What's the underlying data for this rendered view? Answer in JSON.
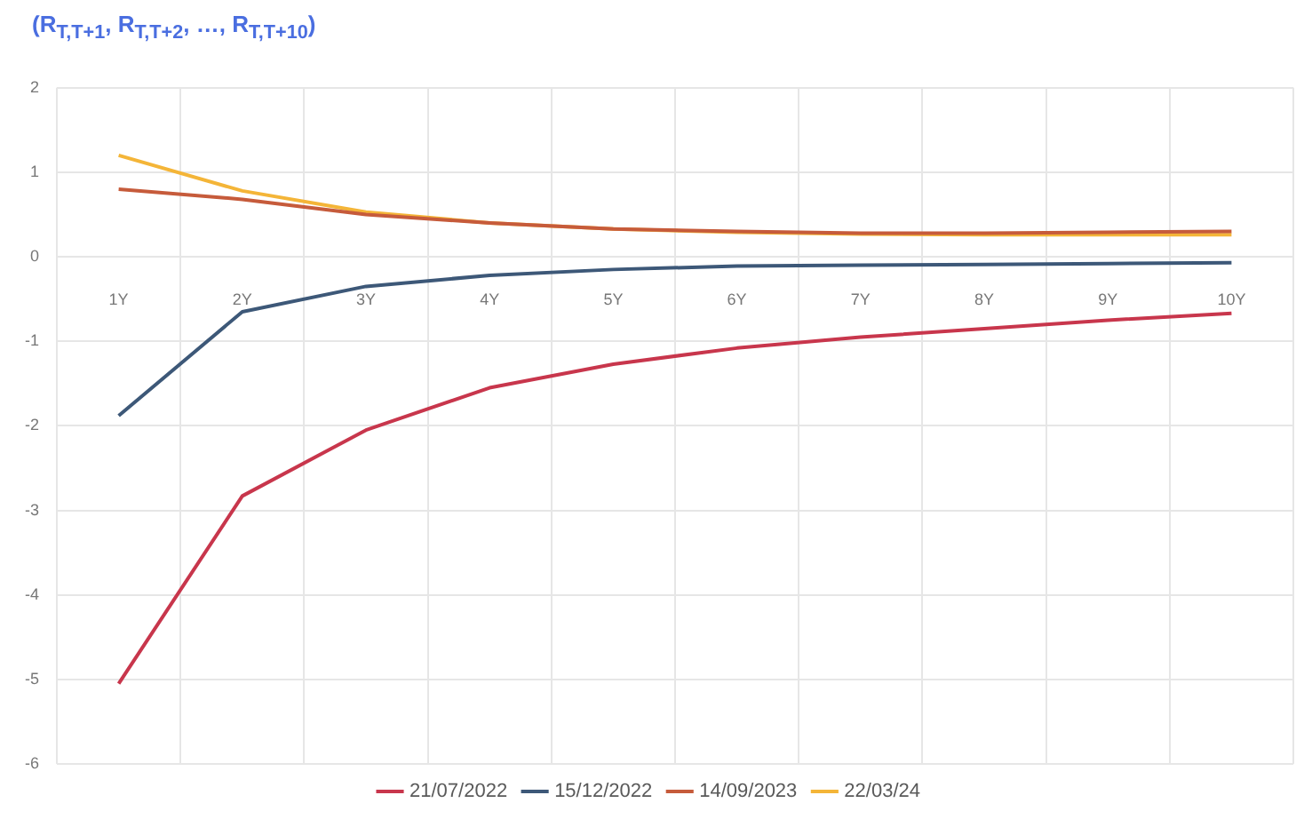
{
  "chart_data": {
    "type": "line",
    "title": "(R$_{T,T+1}$, R$_{T,T+2}$, …, R$_{T,T+10}$)",
    "categories": [
      "1Y",
      "2Y",
      "3Y",
      "4Y",
      "5Y",
      "6Y",
      "7Y",
      "8Y",
      "9Y",
      "10Y"
    ],
    "series": [
      {
        "name": "21/07/2022",
        "color": "#c8364c",
        "values": [
          -5.05,
          -2.83,
          -2.05,
          -1.55,
          -1.27,
          -1.08,
          -0.95,
          -0.85,
          -0.75,
          -0.67
        ]
      },
      {
        "name": "15/12/2022",
        "color": "#3d5878",
        "values": [
          -1.88,
          -0.65,
          -0.35,
          -0.22,
          -0.15,
          -0.11,
          -0.1,
          -0.09,
          -0.08,
          -0.07
        ]
      },
      {
        "name": "14/09/2023",
        "color": "#c65b3b",
        "values": [
          0.8,
          0.68,
          0.5,
          0.4,
          0.33,
          0.3,
          0.28,
          0.28,
          0.29,
          0.3
        ]
      },
      {
        "name": "22/03/24",
        "color": "#f4b538",
        "values": [
          1.2,
          0.78,
          0.53,
          0.4,
          0.33,
          0.29,
          0.27,
          0.26,
          0.26,
          0.26
        ]
      }
    ],
    "ylim": [
      -6,
      2
    ],
    "yticks": [
      -6,
      -5,
      -4,
      -3,
      -2,
      -1,
      0,
      1,
      2
    ],
    "grid": true,
    "legend": "bottom",
    "marker": "none",
    "line_style": "solid"
  }
}
